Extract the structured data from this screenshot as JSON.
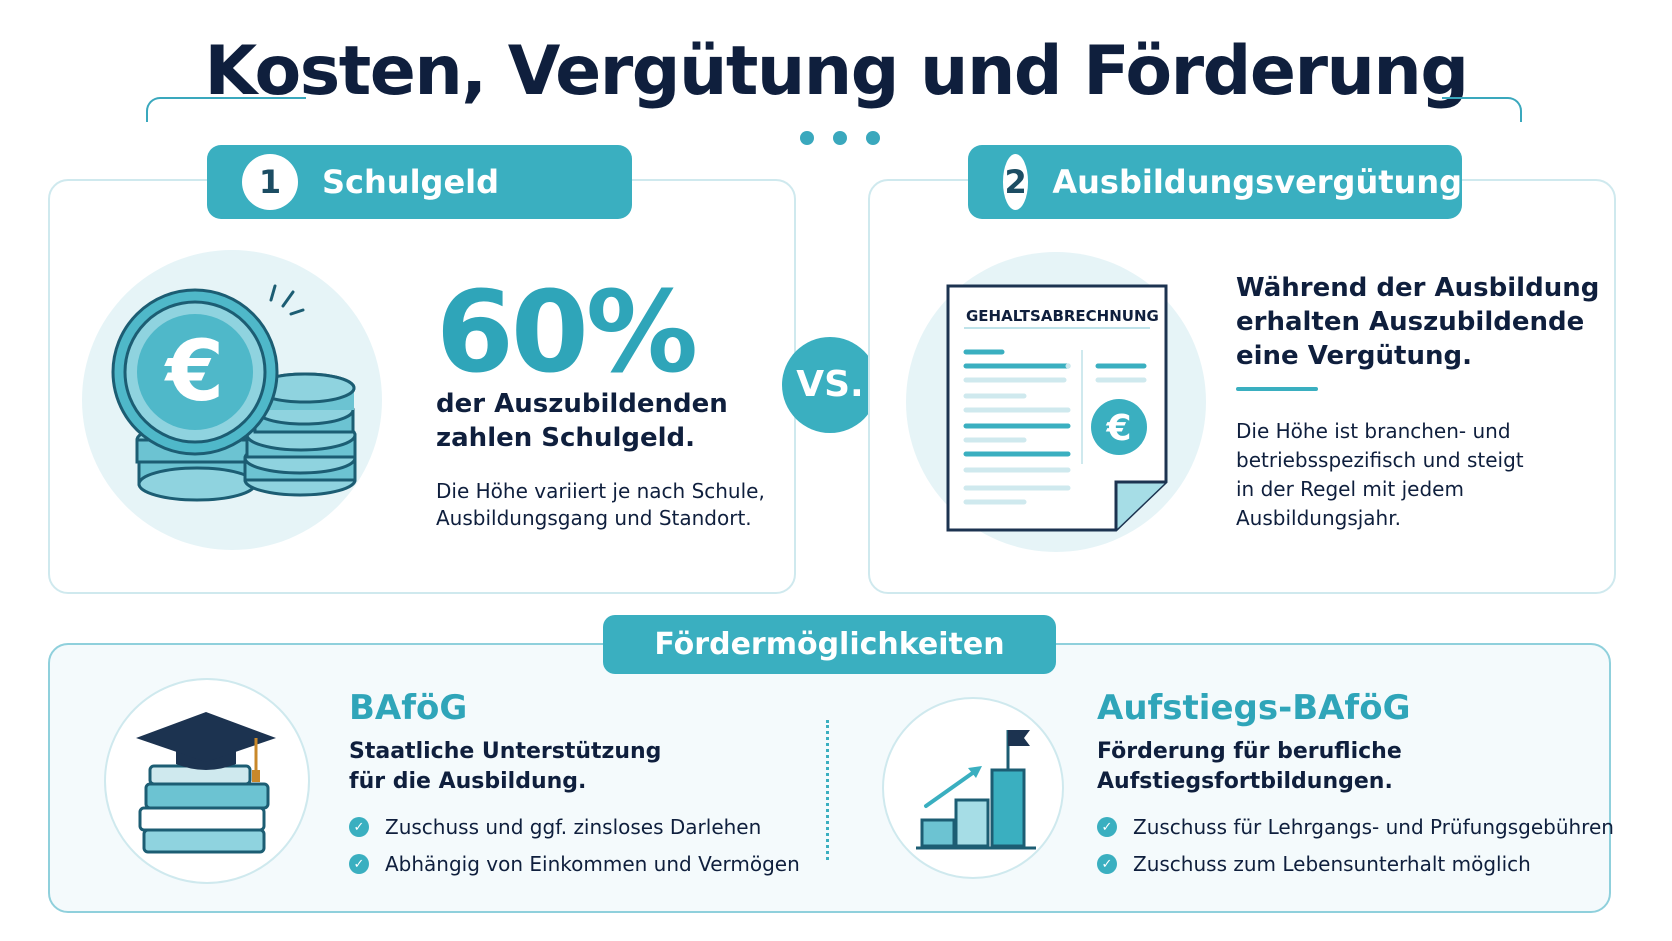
{
  "title": "Kosten, Vergütung und Förderung",
  "colors": {
    "accent": "#3aafc0",
    "accent_text": "#2fa5b9",
    "navy": "#0f1f3d",
    "border": "#cfe9ee"
  },
  "card1": {
    "number": "1",
    "tab_label": "Schulgeld",
    "icon": "euro-coins-icon",
    "percent": "60%",
    "headline_line1": "der Auszubildenden",
    "headline_line2": "zahlen Schulgeld.",
    "body_line1": "Die Höhe variiert je nach Schule,",
    "body_line2": "Ausbildungsgang und Standort."
  },
  "vs_label": "VS.",
  "card2": {
    "number": "2",
    "tab_label": "Ausbildungsvergütung",
    "icon": "payslip-icon",
    "payslip_label": "GEHALTSABRECHNUNG",
    "headline_line1": "Während der Ausbildung",
    "headline_line2": "erhalten Auszubildende",
    "headline_line3": "eine Vergütung.",
    "body_line1": "Die Höhe ist branchen- und",
    "body_line2": "betriebsspezifisch und steigt",
    "body_line3": "in der Regel mit jedem",
    "body_line4": "Ausbildungsjahr."
  },
  "foerder": {
    "tab_label": "Fördermöglichkeiten",
    "bafoeg": {
      "icon": "graduation-books-icon",
      "title": "BAföG",
      "sub_line1": "Staatliche Unterstützung",
      "sub_line2": "für die Ausbildung.",
      "bullets": [
        "Zuschuss und ggf. zinsloses Darlehen",
        "Abhängig von Einkommen und Vermögen"
      ]
    },
    "aufstieg": {
      "icon": "growth-chart-flag-icon",
      "title": "Aufstiegs-BAföG",
      "sub_line1": "Förderung für berufliche",
      "sub_line2": "Aufstiegsfortbildungen.",
      "bullets": [
        "Zuschuss für Lehrgangs- und Prüfungsgebühren",
        "Zuschuss zum Lebensunterhalt möglich"
      ]
    }
  }
}
